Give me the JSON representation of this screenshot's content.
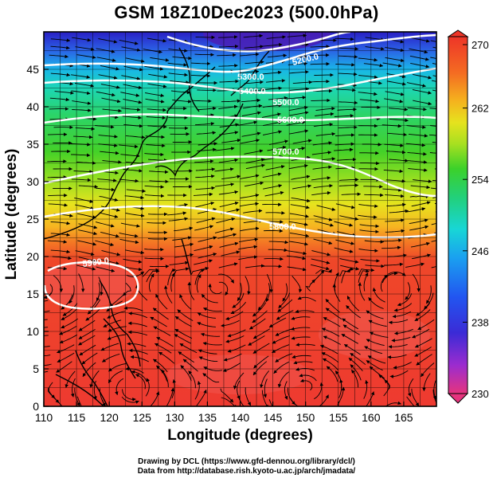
{
  "title": "GSM 18Z10Dec2023 (500.0hPa)",
  "x_axis": {
    "label": "Longitude (degrees)",
    "ticks": [
      "110",
      "115",
      "120",
      "125",
      "130",
      "135",
      "140",
      "145",
      "150",
      "155",
      "160",
      "165"
    ]
  },
  "y_axis": {
    "label": "Latitude  (degrees)",
    "ticks": [
      "0",
      "5",
      "10",
      "15",
      "20",
      "25",
      "30",
      "35",
      "40",
      "45"
    ]
  },
  "colorbar": {
    "tick_labels": [
      "270",
      "262",
      "254",
      "246",
      "238",
      "230"
    ],
    "colors": [
      "#e6347e",
      "#9b2ccf",
      "#3b2bd6",
      "#2255f0",
      "#1aa0f0",
      "#18d6d6",
      "#22d07a",
      "#3cd12a",
      "#a8e020",
      "#e6e21e",
      "#f5b21e",
      "#f46b22",
      "#ee3528"
    ]
  },
  "contour_labels": [
    "5200.0",
    "5300.0",
    "5400.0",
    "5500.0",
    "5600.0",
    "5700.0",
    "5800.0",
    "5900.0"
  ],
  "credits": {
    "line1": "Drawing by DCL (https://www.gfd-dennou.org/library/dcl/)",
    "line2": "Data from http://database.rish.kyoto-u.ac.jp/arch/jmadata/"
  }
}
